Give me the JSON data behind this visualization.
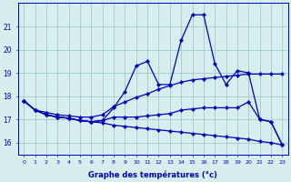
{
  "xlabel": "Graphe des températures (°c)",
  "background_color": "#d6eeee",
  "line_color": "#0000bb",
  "grid_color": "#aacccc",
  "hours": [
    0,
    1,
    2,
    3,
    4,
    5,
    6,
    7,
    8,
    9,
    10,
    11,
    12,
    13,
    14,
    15,
    16,
    17,
    18,
    19,
    20,
    21,
    22,
    23
  ],
  "curve1": [
    17.8,
    17.4,
    17.2,
    17.1,
    17.05,
    16.95,
    16.9,
    16.95,
    17.5,
    18.2,
    19.3,
    19.5,
    18.5,
    18.5,
    20.4,
    21.5,
    21.5,
    19.4,
    18.5,
    19.1,
    19.0,
    17.0,
    16.9,
    15.9
  ],
  "curve2": [
    17.8,
    17.4,
    17.3,
    17.2,
    17.15,
    17.1,
    17.1,
    17.2,
    17.55,
    17.75,
    17.95,
    18.1,
    18.3,
    18.45,
    18.6,
    18.7,
    18.75,
    18.8,
    18.85,
    18.9,
    18.95,
    18.95,
    18.95,
    18.95
  ],
  "curve3": [
    17.8,
    17.4,
    17.2,
    17.1,
    17.05,
    16.95,
    16.9,
    16.95,
    17.1,
    17.1,
    17.1,
    17.15,
    17.2,
    17.25,
    17.4,
    17.45,
    17.5,
    17.5,
    17.5,
    17.5,
    17.75,
    17.0,
    16.9,
    15.9
  ],
  "curve4": [
    17.8,
    17.4,
    17.2,
    17.1,
    17.05,
    16.95,
    16.9,
    16.85,
    16.75,
    16.7,
    16.65,
    16.6,
    16.55,
    16.5,
    16.45,
    16.4,
    16.35,
    16.3,
    16.25,
    16.2,
    16.15,
    16.05,
    16.0,
    15.9
  ],
  "ylim": [
    15.5,
    22.0
  ],
  "xlim": [
    -0.5,
    23.5
  ],
  "yticks": [
    16,
    17,
    18,
    19,
    20,
    21
  ],
  "ytick_labels": [
    "16",
    "17",
    "18",
    "19",
    "20",
    "21"
  ]
}
